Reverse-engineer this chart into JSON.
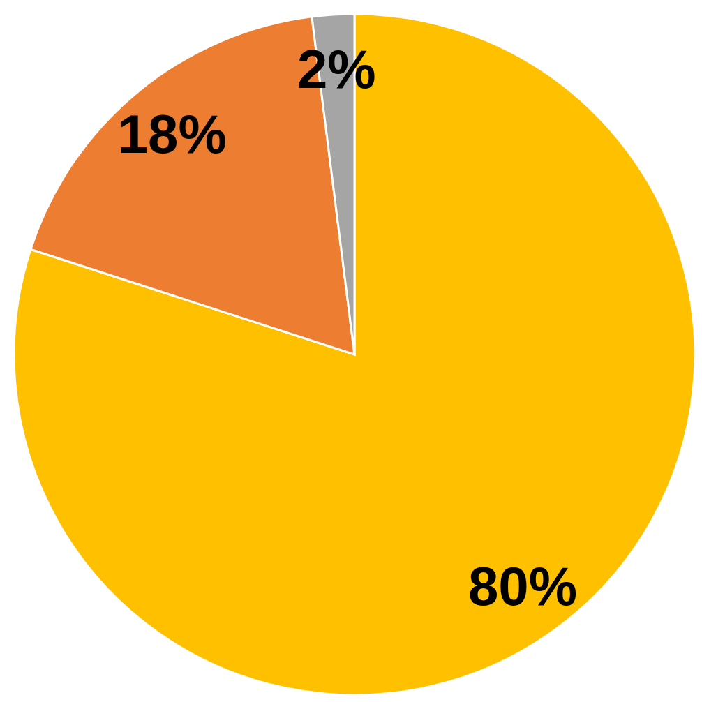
{
  "chart_data": {
    "type": "pie",
    "categories": [
      null,
      null,
      null
    ],
    "values": [
      80,
      18,
      2
    ],
    "colors": [
      "#ffc000",
      "#ed7d31",
      "#a5a5a5"
    ],
    "value_labels": [
      "80%",
      "18%",
      "2%"
    ]
  }
}
